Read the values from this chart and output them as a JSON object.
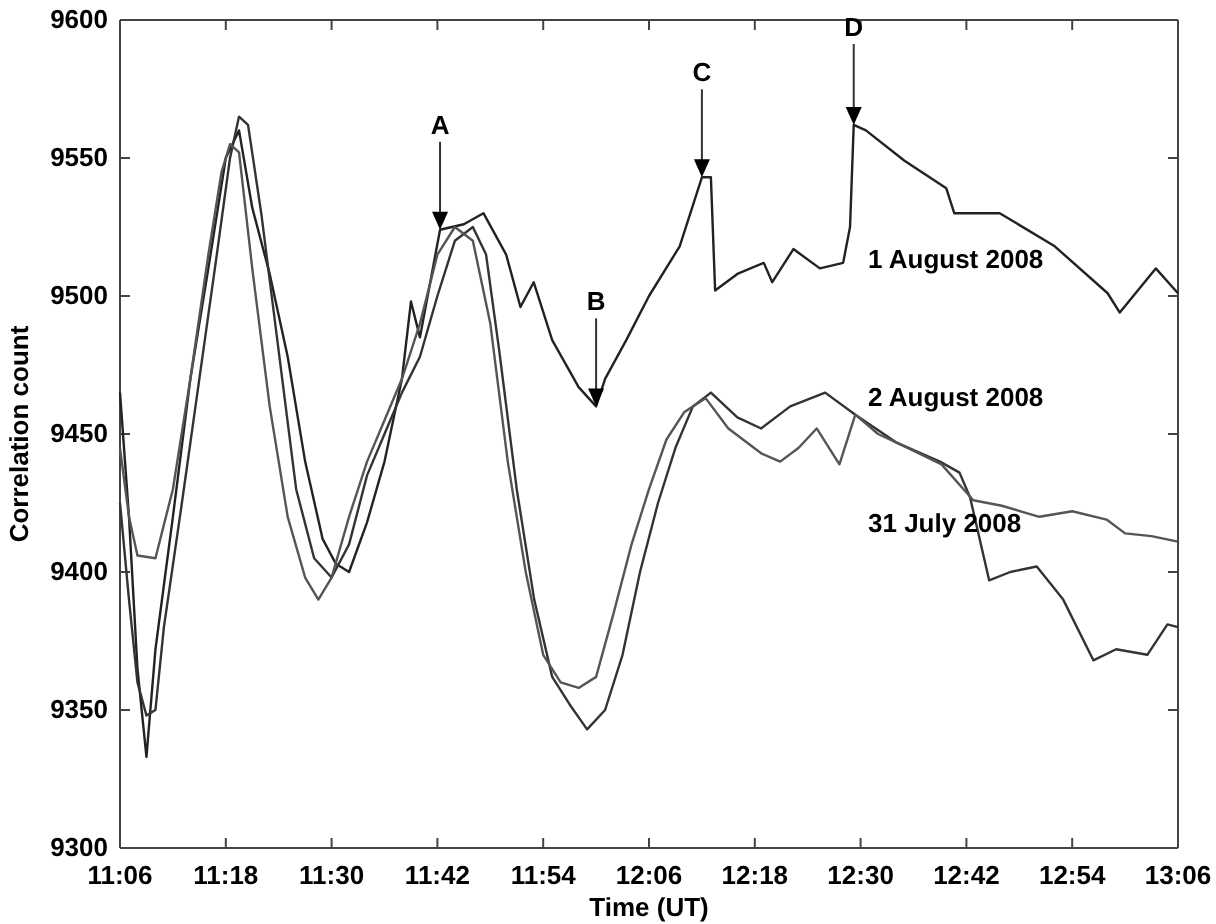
{
  "chart_data": {
    "type": "line",
    "xlabel": "Time (UT)",
    "ylabel": "Correlation count",
    "xlim": [
      11.1,
      13.1
    ],
    "ylim": [
      9300,
      9600
    ],
    "xticks": [
      {
        "value": 11.1,
        "label": "11:06"
      },
      {
        "value": 11.3,
        "label": "11:18"
      },
      {
        "value": 11.5,
        "label": "11:30"
      },
      {
        "value": 11.7,
        "label": "11:42"
      },
      {
        "value": 11.9,
        "label": "11:54"
      },
      {
        "value": 12.1,
        "label": "12:06"
      },
      {
        "value": 12.3,
        "label": "12:18"
      },
      {
        "value": 12.5,
        "label": "12:30"
      },
      {
        "value": 12.7,
        "label": "12:42"
      },
      {
        "value": 12.9,
        "label": "12:54"
      },
      {
        "value": 13.1,
        "label": "13:06"
      }
    ],
    "yticks": [
      9300,
      9350,
      9400,
      9450,
      9500,
      9550,
      9600
    ],
    "grid": false,
    "legend": false,
    "marker": "none",
    "line_style": "solid",
    "series": [
      {
        "name": "1 August 2008",
        "color": "#222222",
        "x": [
          11.1,
          11.117,
          11.133,
          11.15,
          11.167,
          11.2,
          11.233,
          11.267,
          11.3,
          11.325,
          11.35,
          11.383,
          11.417,
          11.45,
          11.483,
          11.508,
          11.533,
          11.567,
          11.6,
          11.633,
          11.65,
          11.667,
          11.705,
          11.75,
          11.787,
          11.83,
          11.857,
          11.882,
          11.917,
          11.967,
          12.0,
          12.017,
          12.057,
          12.1,
          12.158,
          12.2,
          12.217,
          12.225,
          12.267,
          12.317,
          12.333,
          12.373,
          12.423,
          12.467,
          12.48,
          12.487,
          12.51,
          12.583,
          12.662,
          12.677,
          12.763,
          12.867,
          12.967,
          12.99,
          13.058,
          13.1
        ],
        "values": [
          9465,
          9420,
          9365,
          9333,
          9372,
          9420,
          9470,
          9510,
          9550,
          9560,
          9532,
          9508,
          9478,
          9440,
          9412,
          9403,
          9400,
          9418,
          9440,
          9470,
          9498,
          9485,
          9524,
          9526,
          9530,
          9515,
          9496,
          9505,
          9484,
          9467,
          9460,
          9470,
          9484,
          9500,
          9518,
          9543,
          9543,
          9502,
          9508,
          9512,
          9505,
          9517,
          9510,
          9512,
          9525,
          9562,
          9560,
          9549,
          9539,
          9530,
          9530,
          9518,
          9501,
          9494,
          9510,
          9501
        ]
      },
      {
        "name": "2 August 2008",
        "color": "#333333",
        "x": [
          11.1,
          11.117,
          11.133,
          11.15,
          11.167,
          11.183,
          11.217,
          11.25,
          11.283,
          11.308,
          11.325,
          11.342,
          11.367,
          11.4,
          11.433,
          11.467,
          11.5,
          11.533,
          11.567,
          11.6,
          11.633,
          11.667,
          11.7,
          11.733,
          11.767,
          11.792,
          11.817,
          11.85,
          11.883,
          11.917,
          11.95,
          11.983,
          12.017,
          12.05,
          12.083,
          12.117,
          12.15,
          12.183,
          12.217,
          12.267,
          12.312,
          12.367,
          12.433,
          12.49,
          12.567,
          12.65,
          12.687,
          12.707,
          12.743,
          12.783,
          12.833,
          12.883,
          12.94,
          12.983,
          13.042,
          13.08,
          13.1
        ],
        "values": [
          9425,
          9390,
          9360,
          9348,
          9350,
          9380,
          9425,
          9470,
          9515,
          9550,
          9565,
          9562,
          9530,
          9480,
          9430,
          9405,
          9398,
          9410,
          9435,
          9450,
          9465,
          9478,
          9500,
          9520,
          9525,
          9515,
          9480,
          9430,
          9390,
          9362,
          9352,
          9343,
          9350,
          9370,
          9400,
          9425,
          9445,
          9460,
          9465,
          9456,
          9452,
          9460,
          9465,
          9457,
          9447,
          9440,
          9436,
          9427,
          9397,
          9400,
          9402,
          9390,
          9368,
          9372,
          9370,
          9381,
          9380
        ]
      },
      {
        "name": "31 July 2008",
        "color": "#555555",
        "x": [
          11.1,
          11.117,
          11.133,
          11.167,
          11.2,
          11.233,
          11.267,
          11.292,
          11.308,
          11.325,
          11.35,
          11.383,
          11.417,
          11.45,
          11.475,
          11.5,
          11.533,
          11.567,
          11.6,
          11.633,
          11.667,
          11.7,
          11.733,
          11.767,
          11.8,
          11.833,
          11.867,
          11.9,
          11.933,
          11.967,
          12.0,
          12.033,
          12.067,
          12.1,
          12.133,
          12.167,
          12.207,
          12.25,
          12.312,
          12.348,
          12.383,
          12.417,
          12.46,
          12.49,
          12.533,
          12.578,
          12.653,
          12.713,
          12.767,
          12.838,
          12.9,
          12.965,
          13.0,
          13.05,
          13.1
        ],
        "values": [
          9445,
          9420,
          9406,
          9405,
          9430,
          9470,
          9515,
          9545,
          9555,
          9552,
          9510,
          9460,
          9420,
          9398,
          9390,
          9398,
          9420,
          9440,
          9455,
          9470,
          9490,
          9515,
          9525,
          9520,
          9490,
          9440,
          9400,
          9370,
          9360,
          9358,
          9362,
          9385,
          9410,
          9430,
          9448,
          9458,
          9463,
          9452,
          9443,
          9440,
          9445,
          9452,
          9439,
          9457,
          9450,
          9446,
          9439,
          9426,
          9424,
          9420,
          9422,
          9419,
          9414,
          9413,
          9411
        ]
      }
    ],
    "annotations": [
      {
        "text": "A",
        "x": 11.705,
        "y": 9524
      },
      {
        "text": "B",
        "x": 12.0,
        "y": 9460
      },
      {
        "text": "C",
        "x": 12.2,
        "y": 9543
      },
      {
        "text": "D",
        "x": 12.487,
        "y": 9562
      }
    ]
  }
}
